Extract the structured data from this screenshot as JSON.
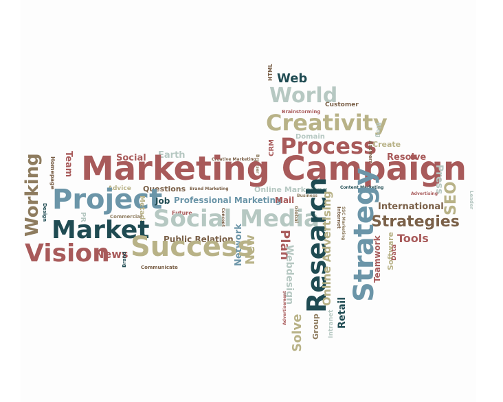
{
  "words": [
    "HTML",
    "Web",
    "World",
    "Customer",
    "Brainstorming",
    "Creativity",
    "Blog",
    "Domain",
    "Process",
    "Create",
    "Answers",
    "CRM",
    "Resolve",
    "Social",
    "Earth",
    "Creative Marketing",
    "Browser",
    "Team",
    "Homepage",
    "Marketing Campaign",
    "Press",
    "Advice",
    "Questions",
    "Brand Marketing",
    "Online Marketing",
    "Business",
    "Content Marketing",
    "Advertising",
    "SEO",
    "Leader",
    "Working",
    "Project",
    "Job",
    "Professional Marketing",
    "Mail",
    "International",
    "Design",
    "Future",
    "Concept",
    "Metadata",
    "Social Media",
    "Commercial",
    "Global",
    "Internet",
    "SSC Marketing",
    "Strategies",
    "PR",
    "Market",
    "Research",
    "Strategy",
    "Public Relation",
    "Network",
    "Plan",
    "Tools",
    "Vision",
    "News",
    "Success",
    "New",
    "Brand",
    "Communicate",
    "Webdesign",
    "Online Advertising",
    "Teamwork",
    "Software",
    "Data",
    "Advertisement",
    "Solve",
    "Intranet",
    "Retail",
    "Group"
  ],
  "colors": {
    "rose": "#b5616a",
    "steel": "#6b95a8",
    "khaki": "#b8b287",
    "teal": "#1f4b52",
    "brown": "#7a6048",
    "mist": "#b6c8c2"
  }
}
